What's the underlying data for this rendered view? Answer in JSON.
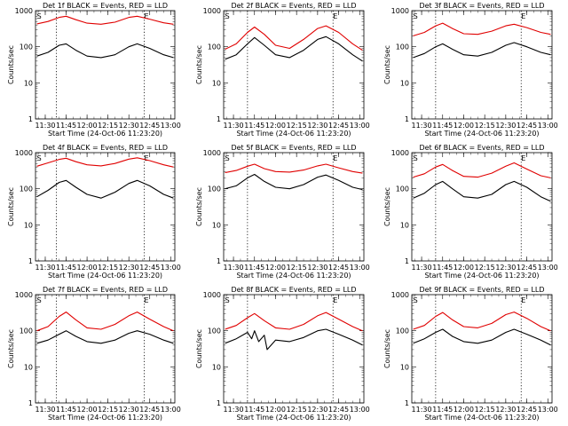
{
  "figure": {
    "ylabel": "Counts/sec",
    "xlabel": "Start Time (24-Oct-06 11:23:20)"
  },
  "markers": {
    "start": "S",
    "end": "E"
  },
  "colors": {
    "events": "#000000",
    "lld": "#e00000"
  },
  "chart_data": [
    {
      "type": "line",
      "title": "Det 1f  BLACK = Events, RED = LLD",
      "xlabel": "Start Time (24-Oct-06 11:23:20)",
      "ylabel": "Counts/sec",
      "x_ticks": [
        "11:30",
        "11:45",
        "12:00",
        "12:15",
        "12:30",
        "12:45",
        "13:00"
      ],
      "y_ticks": [
        "1",
        "10",
        "100",
        "1000"
      ],
      "xlim": [
        "11:23",
        "13:03"
      ],
      "ylim": [
        1,
        1000
      ],
      "yscale": "log",
      "markers": {
        "S": "11:24",
        "E": "12:41"
      },
      "dotted_lines": [
        "11:38",
        "12:41"
      ],
      "series": [
        {
          "name": "Events",
          "color": "#000000",
          "x": [
            "11:24",
            "11:32",
            "11:40",
            "11:45",
            "11:52",
            "12:00",
            "12:10",
            "12:20",
            "12:30",
            "12:36",
            "12:45",
            "12:55",
            "13:02"
          ],
          "values": [
            55,
            70,
            110,
            120,
            80,
            55,
            50,
            60,
            100,
            120,
            90,
            60,
            50
          ]
        },
        {
          "name": "LLD",
          "color": "#e00000",
          "x": [
            "11:24",
            "11:32",
            "11:40",
            "11:45",
            "11:52",
            "12:00",
            "12:10",
            "12:20",
            "12:30",
            "12:36",
            "12:45",
            "12:55",
            "13:02"
          ],
          "values": [
            430,
            500,
            650,
            700,
            560,
            450,
            420,
            480,
            650,
            700,
            580,
            460,
            420
          ]
        }
      ]
    },
    {
      "type": "line",
      "title": "Det 2f  BLACK = Events, RED = LLD",
      "xlabel": "Start Time (24-Oct-06 11:23:20)",
      "ylabel": "Counts/sec",
      "x_ticks": [
        "11:30",
        "11:45",
        "12:00",
        "12:15",
        "12:30",
        "12:45",
        "13:00"
      ],
      "y_ticks": [
        "1",
        "10",
        "100",
        "1000"
      ],
      "xlim": [
        "11:23",
        "13:03"
      ],
      "ylim": [
        1,
        1000
      ],
      "yscale": "log",
      "markers": {
        "S": "11:24",
        "E": "12:41"
      },
      "dotted_lines": [
        "11:40",
        "12:41"
      ],
      "series": [
        {
          "name": "Events",
          "color": "#000000",
          "x": [
            "11:24",
            "11:32",
            "11:40",
            "11:45",
            "11:52",
            "12:00",
            "12:10",
            "12:20",
            "12:30",
            "12:36",
            "12:45",
            "12:55",
            "13:02"
          ],
          "values": [
            45,
            60,
            120,
            180,
            110,
            60,
            50,
            80,
            160,
            190,
            120,
            60,
            40
          ]
        },
        {
          "name": "LLD",
          "color": "#e00000",
          "x": [
            "11:24",
            "11:32",
            "11:40",
            "11:45",
            "11:52",
            "12:00",
            "12:10",
            "12:20",
            "12:30",
            "12:36",
            "12:45",
            "12:55",
            "13:02"
          ],
          "values": [
            85,
            120,
            250,
            350,
            220,
            110,
            90,
            160,
            320,
            380,
            250,
            120,
            80
          ]
        }
      ]
    },
    {
      "type": "line",
      "title": "Det 3f  BLACK = Events, RED = LLD",
      "xlabel": "Start Time (24-Oct-06 11:23:20)",
      "ylabel": "Counts/sec",
      "x_ticks": [
        "11:30",
        "11:45",
        "12:00",
        "12:15",
        "12:30",
        "12:45",
        "13:00"
      ],
      "y_ticks": [
        "1",
        "10",
        "100",
        "1000"
      ],
      "xlim": [
        "11:23",
        "13:03"
      ],
      "ylim": [
        1,
        1000
      ],
      "yscale": "log",
      "markers": {
        "S": "11:24",
        "E": "12:41"
      },
      "dotted_lines": [
        "11:40",
        "12:41"
      ],
      "series": [
        {
          "name": "Events",
          "color": "#000000",
          "x": [
            "11:24",
            "11:32",
            "11:40",
            "11:45",
            "11:52",
            "12:00",
            "12:10",
            "12:20",
            "12:30",
            "12:36",
            "12:45",
            "12:55",
            "13:02"
          ],
          "values": [
            50,
            65,
            100,
            120,
            85,
            60,
            55,
            70,
            110,
            130,
            100,
            70,
            60
          ]
        },
        {
          "name": "LLD",
          "color": "#e00000",
          "x": [
            "11:24",
            "11:32",
            "11:40",
            "11:45",
            "11:52",
            "12:00",
            "12:10",
            "12:20",
            "12:30",
            "12:36",
            "12:45",
            "12:55",
            "13:02"
          ],
          "values": [
            200,
            250,
            380,
            450,
            320,
            230,
            220,
            270,
            380,
            420,
            340,
            250,
            220
          ]
        }
      ]
    },
    {
      "type": "line",
      "title": "Det 4f  BLACK = Events, RED = LLD",
      "xlabel": "Start Time (24-Oct-06 11:23:20)",
      "ylabel": "Counts/sec",
      "x_ticks": [
        "11:30",
        "11:45",
        "12:00",
        "12:15",
        "12:30",
        "12:45",
        "13:00"
      ],
      "y_ticks": [
        "1",
        "10",
        "100",
        "1000"
      ],
      "xlim": [
        "11:23",
        "13:03"
      ],
      "ylim": [
        1,
        1000
      ],
      "yscale": "log",
      "markers": {
        "S": "11:24",
        "E": "12:41"
      },
      "dotted_lines": [
        "11:38",
        "12:41"
      ],
      "series": [
        {
          "name": "Events",
          "color": "#000000",
          "x": [
            "11:24",
            "11:32",
            "11:40",
            "11:45",
            "11:52",
            "12:00",
            "12:10",
            "12:20",
            "12:30",
            "12:36",
            "12:45",
            "12:55",
            "13:02"
          ],
          "values": [
            60,
            90,
            150,
            170,
            110,
            70,
            55,
            80,
            140,
            170,
            120,
            70,
            55
          ]
        },
        {
          "name": "LLD",
          "color": "#e00000",
          "x": [
            "11:24",
            "11:32",
            "11:40",
            "11:45",
            "11:52",
            "12:00",
            "12:10",
            "12:20",
            "12:30",
            "12:36",
            "12:45",
            "12:55",
            "13:02"
          ],
          "values": [
            420,
            520,
            650,
            700,
            560,
            460,
            430,
            500,
            660,
            720,
            600,
            460,
            400
          ]
        }
      ]
    },
    {
      "type": "line",
      "title": "Det 5f  BLACK = Events, RED = LLD",
      "xlabel": "Start Time (24-Oct-06 11:23:20)",
      "ylabel": "Counts/sec",
      "x_ticks": [
        "11:30",
        "11:45",
        "12:00",
        "12:15",
        "12:30",
        "12:45",
        "13:00"
      ],
      "y_ticks": [
        "1",
        "10",
        "100",
        "1000"
      ],
      "xlim": [
        "11:23",
        "13:03"
      ],
      "ylim": [
        1,
        1000
      ],
      "yscale": "log",
      "markers": {
        "S": "11:24",
        "E": "12:41"
      },
      "dotted_lines": [
        "11:40",
        "12:41"
      ],
      "series": [
        {
          "name": "Events",
          "color": "#000000",
          "x": [
            "11:24",
            "11:32",
            "11:40",
            "11:45",
            "11:52",
            "12:00",
            "12:10",
            "12:20",
            "12:30",
            "12:36",
            "12:45",
            "12:55",
            "13:02"
          ],
          "values": [
            100,
            120,
            200,
            250,
            160,
            110,
            100,
            130,
            210,
            240,
            170,
            110,
            95
          ]
        },
        {
          "name": "LLD",
          "color": "#e00000",
          "x": [
            "11:24",
            "11:32",
            "11:40",
            "11:45",
            "11:52",
            "12:00",
            "12:10",
            "12:20",
            "12:30",
            "12:36",
            "12:45",
            "12:55",
            "13:02"
          ],
          "values": [
            280,
            320,
            420,
            480,
            360,
            300,
            290,
            330,
            430,
            480,
            380,
            300,
            270
          ]
        }
      ]
    },
    {
      "type": "line",
      "title": "Det 6f  BLACK = Events, RED = LLD",
      "xlabel": "Start Time (24-Oct-06 11:23:20)",
      "ylabel": "Counts/sec",
      "x_ticks": [
        "11:30",
        "11:45",
        "12:00",
        "12:15",
        "12:30",
        "12:45",
        "13:00"
      ],
      "y_ticks": [
        "1",
        "10",
        "100",
        "1000"
      ],
      "xlim": [
        "11:23",
        "13:03"
      ],
      "ylim": [
        1,
        1000
      ],
      "yscale": "log",
      "markers": {
        "S": "11:24",
        "E": "12:41"
      },
      "dotted_lines": [
        "11:40",
        "12:41"
      ],
      "series": [
        {
          "name": "Events",
          "color": "#000000",
          "x": [
            "11:24",
            "11:32",
            "11:40",
            "11:45",
            "11:52",
            "12:00",
            "12:10",
            "12:20",
            "12:30",
            "12:36",
            "12:45",
            "12:55",
            "13:02"
          ],
          "values": [
            55,
            75,
            130,
            160,
            100,
            60,
            55,
            70,
            130,
            160,
            110,
            60,
            45
          ]
        },
        {
          "name": "LLD",
          "color": "#e00000",
          "x": [
            "11:24",
            "11:32",
            "11:40",
            "11:45",
            "11:52",
            "12:00",
            "12:10",
            "12:20",
            "12:30",
            "12:36",
            "12:45",
            "12:55",
            "13:02"
          ],
          "values": [
            210,
            260,
            400,
            470,
            320,
            220,
            210,
            270,
            420,
            520,
            350,
            230,
            200
          ]
        }
      ]
    },
    {
      "type": "line",
      "title": "Det 7f  BLACK = Events, RED = LLD",
      "xlabel": "Start Time (24-Oct-06 11:23:20)",
      "ylabel": "Counts/sec",
      "x_ticks": [
        "11:30",
        "11:45",
        "12:00",
        "12:15",
        "12:30",
        "12:45",
        "13:00"
      ],
      "y_ticks": [
        "1",
        "10",
        "100",
        "1000"
      ],
      "xlim": [
        "11:23",
        "13:03"
      ],
      "ylim": [
        1,
        1000
      ],
      "yscale": "log",
      "markers": {
        "S": "11:24",
        "E": "12:41"
      },
      "dotted_lines": [
        "11:38",
        "12:41"
      ],
      "series": [
        {
          "name": "Events",
          "color": "#000000",
          "x": [
            "11:24",
            "11:32",
            "11:40",
            "11:45",
            "11:52",
            "12:00",
            "12:10",
            "12:20",
            "12:30",
            "12:36",
            "12:45",
            "12:55",
            "13:02"
          ],
          "values": [
            45,
            55,
            80,
            100,
            70,
            50,
            45,
            55,
            85,
            100,
            80,
            55,
            45
          ]
        },
        {
          "name": "LLD",
          "color": "#e00000",
          "x": [
            "11:24",
            "11:32",
            "11:40",
            "11:45",
            "11:52",
            "12:00",
            "12:10",
            "12:20",
            "12:30",
            "12:36",
            "12:45",
            "12:55",
            "13:02"
          ],
          "values": [
            100,
            130,
            250,
            330,
            200,
            120,
            110,
            150,
            260,
            330,
            210,
            130,
            100
          ]
        }
      ]
    },
    {
      "type": "line",
      "title": "Det 8f  BLACK = Events, RED = LLD",
      "xlabel": "Start Time (24-Oct-06 11:23:20)",
      "ylabel": "Counts/sec",
      "x_ticks": [
        "11:30",
        "11:45",
        "12:00",
        "12:15",
        "12:30",
        "12:45",
        "13:00"
      ],
      "y_ticks": [
        "1",
        "10",
        "100",
        "1000"
      ],
      "xlim": [
        "11:23",
        "13:03"
      ],
      "ylim": [
        1,
        1000
      ],
      "yscale": "log",
      "markers": {
        "S": "11:24",
        "E": "12:41"
      },
      "dotted_lines": [
        "11:40",
        "12:41"
      ],
      "series": [
        {
          "name": "Events",
          "color": "#000000",
          "x": [
            "11:24",
            "11:32",
            "11:40",
            "11:43",
            "11:45",
            "11:48",
            "11:52",
            "11:54",
            "12:00",
            "12:10",
            "12:20",
            "12:30",
            "12:36",
            "12:45",
            "12:55",
            "13:02"
          ],
          "values": [
            45,
            60,
            90,
            60,
            100,
            50,
            75,
            30,
            55,
            50,
            65,
            100,
            110,
            80,
            55,
            40
          ]
        },
        {
          "name": "LLD",
          "color": "#e00000",
          "x": [
            "11:24",
            "11:32",
            "11:40",
            "11:45",
            "11:52",
            "12:00",
            "12:10",
            "12:20",
            "12:30",
            "12:36",
            "12:45",
            "12:55",
            "13:02"
          ],
          "values": [
            110,
            140,
            230,
            300,
            190,
            120,
            110,
            150,
            260,
            320,
            210,
            130,
            100
          ]
        }
      ]
    },
    {
      "type": "line",
      "title": "Det 9f  BLACK = Events, RED = LLD",
      "xlabel": "Start Time (24-Oct-06 11:23:20)",
      "ylabel": "Counts/sec",
      "x_ticks": [
        "11:30",
        "11:45",
        "12:00",
        "12:15",
        "12:30",
        "12:45",
        "13:00"
      ],
      "y_ticks": [
        "1",
        "10",
        "100",
        "1000"
      ],
      "xlim": [
        "11:23",
        "13:03"
      ],
      "ylim": [
        1,
        1000
      ],
      "yscale": "log",
      "markers": {
        "S": "11:24",
        "E": "12:41"
      },
      "dotted_lines": [
        "11:40",
        "12:41"
      ],
      "series": [
        {
          "name": "Events",
          "color": "#000000",
          "x": [
            "11:24",
            "11:32",
            "11:40",
            "11:45",
            "11:52",
            "12:00",
            "12:10",
            "12:20",
            "12:30",
            "12:36",
            "12:45",
            "12:55",
            "13:02"
          ],
          "values": [
            45,
            60,
            90,
            110,
            70,
            50,
            45,
            55,
            90,
            110,
            80,
            55,
            40
          ]
        },
        {
          "name": "LLD",
          "color": "#e00000",
          "x": [
            "11:24",
            "11:32",
            "11:40",
            "11:45",
            "11:52",
            "12:00",
            "12:10",
            "12:20",
            "12:30",
            "12:36",
            "12:45",
            "12:55",
            "13:02"
          ],
          "values": [
            110,
            140,
            250,
            320,
            200,
            130,
            120,
            160,
            280,
            330,
            220,
            130,
            100
          ]
        }
      ]
    }
  ]
}
